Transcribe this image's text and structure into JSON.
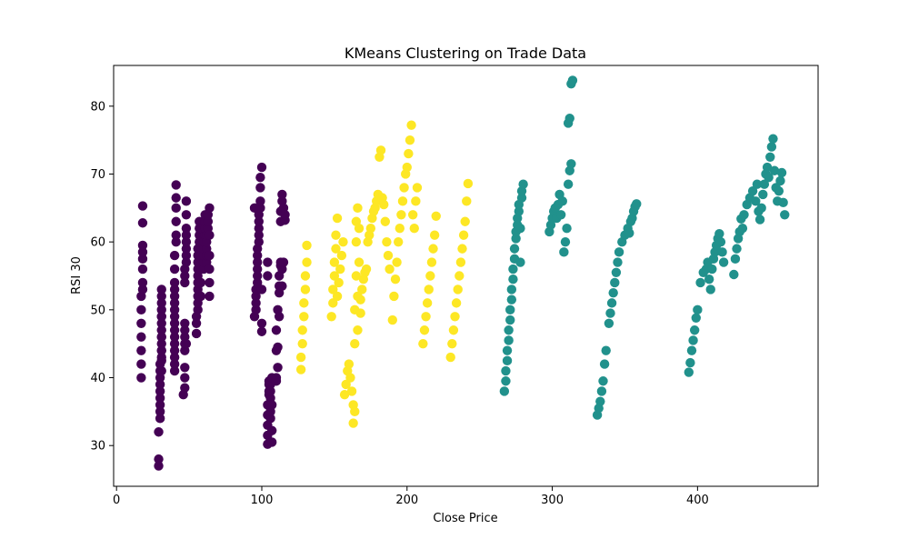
{
  "chart_data": {
    "type": "scatter",
    "title": "KMeans Clustering on Trade Data",
    "xlabel": "Close Price",
    "ylabel": "RSI 30",
    "xlim": [
      -2,
      483
    ],
    "ylim": [
      24,
      86
    ],
    "xticks": [
      0,
      100,
      200,
      300,
      400
    ],
    "yticks": [
      30,
      40,
      50,
      60,
      70,
      80
    ],
    "grid": false,
    "legend": "none",
    "colors": {
      "cluster_0": "#440154",
      "cluster_1": "#21918c",
      "cluster_2": "#fde725"
    },
    "series": [
      {
        "cluster": 0,
        "color": "#440154",
        "x": [
          17,
          17,
          17,
          17,
          17,
          17,
          17,
          18,
          18,
          18,
          18,
          18,
          18,
          18,
          18,
          29,
          29,
          29,
          30,
          30,
          30,
          30,
          30,
          30,
          30,
          30,
          30,
          31,
          31,
          31,
          31,
          31,
          31,
          31,
          31,
          31,
          31,
          31,
          31,
          31,
          31,
          31,
          31,
          40,
          40,
          40,
          40,
          40,
          40,
          40,
          40,
          40,
          40,
          40,
          40,
          40,
          40,
          40,
          40,
          41,
          41,
          41,
          41,
          41,
          41,
          46,
          47,
          47,
          47,
          47,
          47,
          47,
          47,
          47,
          47,
          47,
          47,
          48,
          48,
          48,
          48,
          48,
          48,
          48,
          48,
          48,
          55,
          55,
          55,
          56,
          56,
          56,
          56,
          56,
          56,
          56,
          56,
          56,
          56,
          57,
          57,
          57,
          57,
          58,
          58,
          58,
          58,
          58,
          58,
          60,
          60,
          60,
          60,
          60,
          61,
          61,
          61,
          61,
          62,
          62,
          62,
          62,
          62,
          63,
          63,
          63,
          64,
          64,
          64,
          64,
          64,
          64,
          95,
          95,
          96,
          96,
          96,
          96,
          97,
          97,
          97,
          97,
          97,
          97,
          98,
          98,
          98,
          98,
          98,
          99,
          99,
          99,
          99,
          100,
          100,
          100,
          100,
          104,
          104,
          104,
          104,
          104,
          104,
          104,
          105,
          105,
          105,
          105,
          106,
          106,
          106,
          106,
          106,
          106,
          107,
          107,
          107,
          107,
          110,
          110,
          110,
          110,
          111,
          111,
          111,
          112,
          112,
          112,
          112,
          113,
          113,
          113,
          113,
          114,
          114,
          114,
          114,
          115,
          115,
          116,
          116
        ],
        "y": [
          40,
          42,
          44,
          46,
          48,
          50,
          52,
          53,
          54,
          56,
          57.5,
          58.5,
          59.5,
          62.8,
          65.3,
          27,
          28,
          32,
          34,
          35,
          36,
          37,
          38,
          39,
          40,
          41,
          42,
          43,
          44,
          45,
          46,
          47,
          48,
          49,
          50,
          51,
          52,
          53,
          49,
          46,
          44,
          42.5,
          41,
          41,
          42,
          43,
          44,
          45,
          46,
          47,
          48,
          49,
          50,
          51,
          52,
          53,
          54,
          56,
          58,
          60,
          61,
          63,
          65,
          66.5,
          68.4,
          37.5,
          38.5,
          40,
          41.5,
          44,
          45,
          46,
          47,
          48,
          54,
          55,
          56,
          57,
          58,
          59,
          60,
          61,
          62,
          64,
          66,
          45,
          46.5,
          48,
          49,
          50,
          51,
          52,
          53,
          54,
          55,
          56,
          57,
          58,
          59,
          60,
          61,
          62,
          63,
          52,
          54,
          56,
          58,
          60,
          62,
          56,
          57,
          58,
          59,
          60,
          61,
          62,
          63,
          64,
          57,
          58,
          59,
          60,
          61,
          62,
          63,
          64,
          65,
          52,
          54,
          56,
          58,
          61,
          65,
          49,
          50,
          51,
          52,
          53,
          54,
          55,
          56,
          57,
          58,
          59,
          60,
          61,
          62,
          63,
          64,
          65,
          66,
          68,
          69.5,
          71,
          46.8,
          48,
          53,
          55,
          57,
          30.2,
          31.5,
          33,
          34.5,
          36,
          37.5,
          39,
          38,
          39.5,
          34,
          35,
          36,
          37,
          38,
          39,
          40,
          30.5,
          32.2,
          36,
          39.5,
          40,
          44,
          47,
          50,
          41.5,
          44.5,
          49,
          53.5,
          52.5,
          55,
          56.5,
          57,
          63,
          64.5,
          66,
          67,
          53.5,
          56,
          57,
          65,
          63.2,
          64
        ],
        "size": 7
      },
      {
        "cluster": 1,
        "color": "#21918c",
        "x": [
          267,
          268,
          268,
          269,
          269,
          270,
          270,
          271,
          271,
          272,
          272,
          273,
          273,
          274,
          274,
          275,
          275,
          276,
          276,
          277,
          277,
          278,
          278,
          279,
          279,
          280,
          298,
          299,
          300,
          301,
          302,
          303,
          304,
          305,
          306,
          307,
          308,
          309,
          310,
          311,
          311,
          312,
          312,
          313,
          313,
          314,
          331,
          332,
          333,
          334,
          335,
          336,
          337,
          339,
          340,
          341,
          342,
          343,
          344,
          345,
          346,
          348,
          350,
          352,
          353,
          354,
          355,
          356,
          357,
          358,
          394,
          395,
          396,
          397,
          398,
          399,
          400,
          402,
          404,
          406,
          407,
          408,
          409,
          410,
          411,
          412,
          413,
          414,
          415,
          416,
          417,
          418,
          425,
          426,
          427,
          428,
          429,
          430,
          431,
          432,
          434,
          436,
          438,
          440,
          441,
          442,
          443,
          444,
          445,
          446,
          447,
          448,
          449,
          450,
          451,
          452,
          453,
          454,
          455,
          456,
          457,
          458,
          459,
          460
        ],
        "y": [
          38,
          39.5,
          41,
          42.5,
          44,
          45.5,
          47,
          48.5,
          50,
          51.5,
          53,
          54.5,
          56,
          57.5,
          59,
          60.5,
          61.5,
          62.5,
          63.5,
          64.5,
          65.5,
          62,
          57,
          66.5,
          67.5,
          68.5,
          61.5,
          62.5,
          63.5,
          64.5,
          65,
          63.5,
          65.5,
          67,
          64,
          66,
          58.5,
          60,
          62,
          68.5,
          77.5,
          78.2,
          70.5,
          71.5,
          83.3,
          83.8,
          34.5,
          35.5,
          36.5,
          38,
          39.5,
          42,
          44,
          48,
          49.5,
          51,
          52.5,
          54,
          55.5,
          57,
          58.5,
          60,
          61,
          62,
          61.3,
          63,
          63.5,
          64.5,
          65.2,
          65.6,
          40.8,
          42.2,
          44,
          45.5,
          47,
          48.8,
          50,
          54,
          55.5,
          56,
          57,
          54.5,
          53,
          56,
          57.5,
          58.5,
          59.5,
          60.5,
          61.2,
          60,
          58.5,
          57,
          55.2,
          57.5,
          59,
          60.5,
          61.5,
          63.4,
          62,
          64,
          65.5,
          66.5,
          67.5,
          66,
          68.5,
          64.5,
          63.3,
          65,
          67,
          68.5,
          70,
          71,
          69.5,
          72.5,
          74,
          75.2,
          70.5,
          68,
          66,
          67.5,
          69,
          70.2,
          65.8,
          64
        ]
      },
      {
        "cluster": 2,
        "color": "#fde725",
        "x": [
          127,
          127,
          128,
          128,
          129,
          129,
          130,
          130,
          131,
          131,
          148,
          149,
          149,
          150,
          150,
          151,
          151,
          152,
          152,
          153,
          154,
          155,
          156,
          157,
          158,
          159,
          160,
          161,
          162,
          163,
          163,
          164,
          164,
          164,
          165,
          165,
          165,
          166,
          166,
          166,
          167,
          167,
          168,
          168,
          169,
          170,
          171,
          172,
          173,
          174,
          175,
          176,
          177,
          178,
          179,
          180,
          181,
          182,
          183,
          184,
          185,
          186,
          187,
          188,
          190,
          191,
          192,
          193,
          194,
          195,
          196,
          197,
          198,
          199,
          200,
          201,
          202,
          203,
          204,
          205,
          206,
          207,
          211,
          212,
          213,
          214,
          215,
          216,
          217,
          218,
          219,
          220,
          230,
          231,
          232,
          233,
          234,
          235,
          236,
          237,
          238,
          239,
          240,
          241,
          242
        ],
        "y": [
          41.2,
          43,
          45,
          47,
          49,
          51,
          53,
          55,
          57,
          59.5,
          49,
          51,
          53,
          55,
          57,
          59,
          61,
          63.5,
          52,
          54,
          56,
          58,
          60,
          37.5,
          39,
          41,
          42,
          40,
          38,
          36,
          33.3,
          35,
          45,
          50,
          55,
          60,
          63,
          65,
          47,
          52,
          57,
          62,
          49.5,
          51.5,
          53,
          54.5,
          55.5,
          56,
          60,
          61,
          62,
          63.5,
          64.5,
          65,
          66,
          67,
          72.5,
          73.5,
          66.5,
          65.5,
          63,
          60,
          58,
          56,
          48.5,
          52,
          54.5,
          57,
          60,
          62,
          64,
          66,
          68,
          70,
          71,
          73,
          75,
          77.2,
          64,
          62,
          66,
          68,
          45,
          47,
          49,
          51,
          53,
          55,
          57,
          59,
          61,
          63.8,
          43,
          45,
          47,
          49,
          51,
          53,
          55,
          57,
          59,
          61,
          63,
          66,
          68.6
        ]
      }
    ]
  }
}
